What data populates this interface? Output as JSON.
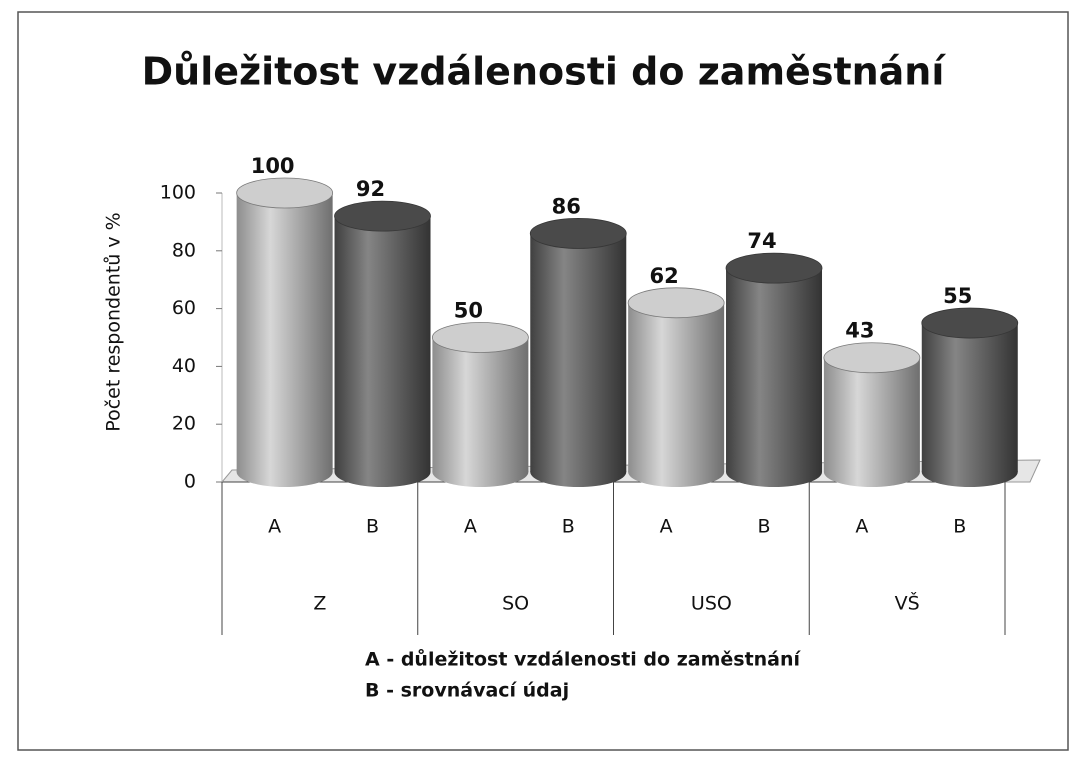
{
  "chart_data": {
    "type": "cylinder-bar",
    "title": "Důležitost vzdálenosti do zaměstnání",
    "y_label": "Počet respondentů v %",
    "groups": [
      "Z",
      "SO",
      "USO",
      "VŠ"
    ],
    "series": [
      {
        "name": "A",
        "color": "#c9c9c9",
        "values": [
          100,
          50,
          62,
          43
        ]
      },
      {
        "name": "B",
        "color": "#5c5c5c",
        "values": [
          92,
          86,
          74,
          55
        ]
      }
    ],
    "legend": [
      "A - důležitost vzdálenosti do zaměstnání",
      "B - srovnávací údaj"
    ],
    "ylim": [
      0,
      100
    ],
    "yticks": [
      0,
      20,
      40,
      60,
      80,
      100
    ]
  }
}
